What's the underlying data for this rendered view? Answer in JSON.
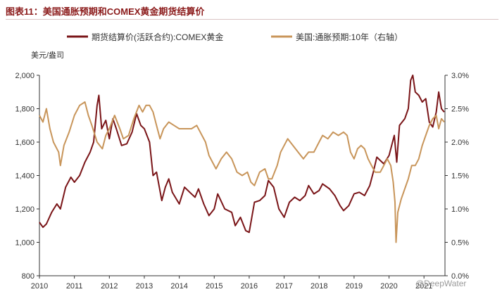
{
  "figure": {
    "title": "图表11：美国通胀预期和COMEX黄金期货结算价",
    "watermark": "@DeepWater"
  },
  "chart_data": {
    "type": "line",
    "y_left_unit": "美元/盎司",
    "y_left_range": [
      800,
      2000
    ],
    "y_left_ticks": [
      "800",
      "1,000",
      "1,200",
      "1,400",
      "1,600",
      "1,800",
      "2,000"
    ],
    "y_right_range": [
      0.0,
      3.0
    ],
    "y_right_ticks": [
      "0.0%",
      "0.5%",
      "1.0%",
      "1.5%",
      "2.0%",
      "2.5%",
      "3.0%"
    ],
    "x_range": [
      2010.0,
      2021.6
    ],
    "x_ticks": [
      "2010",
      "2011",
      "2012",
      "2013",
      "2014",
      "2015",
      "2016",
      "2017",
      "2018",
      "2019",
      "2020",
      "2021"
    ],
    "grid": false,
    "legend_position": "top",
    "series": [
      {
        "name": "期货结算价(活跃合约):COMEX黄金",
        "axis": "left",
        "color": "#7a1518",
        "points": [
          [
            2010.0,
            1120
          ],
          [
            2010.1,
            1090
          ],
          [
            2010.2,
            1110
          ],
          [
            2010.35,
            1180
          ],
          [
            2010.5,
            1230
          ],
          [
            2010.6,
            1200
          ],
          [
            2010.75,
            1330
          ],
          [
            2010.9,
            1390
          ],
          [
            2011.0,
            1360
          ],
          [
            2011.15,
            1400
          ],
          [
            2011.3,
            1480
          ],
          [
            2011.45,
            1540
          ],
          [
            2011.55,
            1600
          ],
          [
            2011.65,
            1820
          ],
          [
            2011.7,
            1880
          ],
          [
            2011.78,
            1680
          ],
          [
            2011.9,
            1730
          ],
          [
            2012.0,
            1620
          ],
          [
            2012.1,
            1740
          ],
          [
            2012.2,
            1680
          ],
          [
            2012.35,
            1580
          ],
          [
            2012.5,
            1590
          ],
          [
            2012.65,
            1660
          ],
          [
            2012.78,
            1770
          ],
          [
            2012.9,
            1700
          ],
          [
            2013.0,
            1680
          ],
          [
            2013.15,
            1600
          ],
          [
            2013.25,
            1400
          ],
          [
            2013.35,
            1420
          ],
          [
            2013.5,
            1250
          ],
          [
            2013.6,
            1330
          ],
          [
            2013.7,
            1380
          ],
          [
            2013.8,
            1300
          ],
          [
            2014.0,
            1230
          ],
          [
            2014.15,
            1330
          ],
          [
            2014.3,
            1300
          ],
          [
            2014.45,
            1270
          ],
          [
            2014.55,
            1320
          ],
          [
            2014.7,
            1230
          ],
          [
            2014.85,
            1160
          ],
          [
            2015.0,
            1200
          ],
          [
            2015.1,
            1290
          ],
          [
            2015.3,
            1200
          ],
          [
            2015.5,
            1180
          ],
          [
            2015.6,
            1100
          ],
          [
            2015.75,
            1150
          ],
          [
            2015.9,
            1070
          ],
          [
            2016.0,
            1060
          ],
          [
            2016.15,
            1240
          ],
          [
            2016.3,
            1250
          ],
          [
            2016.45,
            1280
          ],
          [
            2016.55,
            1370
          ],
          [
            2016.7,
            1330
          ],
          [
            2016.85,
            1200
          ],
          [
            2017.0,
            1150
          ],
          [
            2017.15,
            1240
          ],
          [
            2017.3,
            1270
          ],
          [
            2017.45,
            1250
          ],
          [
            2017.6,
            1280
          ],
          [
            2017.7,
            1340
          ],
          [
            2017.85,
            1290
          ],
          [
            2018.0,
            1310
          ],
          [
            2018.1,
            1350
          ],
          [
            2018.3,
            1320
          ],
          [
            2018.45,
            1280
          ],
          [
            2018.6,
            1220
          ],
          [
            2018.7,
            1190
          ],
          [
            2018.85,
            1220
          ],
          [
            2019.0,
            1290
          ],
          [
            2019.15,
            1300
          ],
          [
            2019.3,
            1280
          ],
          [
            2019.45,
            1340
          ],
          [
            2019.55,
            1420
          ],
          [
            2019.65,
            1510
          ],
          [
            2019.75,
            1490
          ],
          [
            2019.85,
            1470
          ],
          [
            2020.0,
            1520
          ],
          [
            2020.15,
            1640
          ],
          [
            2020.22,
            1480
          ],
          [
            2020.3,
            1700
          ],
          [
            2020.45,
            1740
          ],
          [
            2020.55,
            1800
          ],
          [
            2020.62,
            1970
          ],
          [
            2020.68,
            2000
          ],
          [
            2020.75,
            1900
          ],
          [
            2020.85,
            1880
          ],
          [
            2020.95,
            1840
          ],
          [
            2021.05,
            1860
          ],
          [
            2021.15,
            1720
          ],
          [
            2021.25,
            1690
          ],
          [
            2021.35,
            1780
          ],
          [
            2021.42,
            1900
          ],
          [
            2021.5,
            1800
          ],
          [
            2021.58,
            1780
          ]
        ]
      },
      {
        "name": "美国:通胀预期:10年（右轴）",
        "axis": "right",
        "color": "#c8955a",
        "points": [
          [
            2010.0,
            2.4
          ],
          [
            2010.1,
            2.3
          ],
          [
            2010.2,
            2.5
          ],
          [
            2010.3,
            2.2
          ],
          [
            2010.4,
            2.0
          ],
          [
            2010.55,
            1.85
          ],
          [
            2010.6,
            1.65
          ],
          [
            2010.7,
            1.95
          ],
          [
            2010.85,
            2.15
          ],
          [
            2011.0,
            2.4
          ],
          [
            2011.15,
            2.55
          ],
          [
            2011.3,
            2.6
          ],
          [
            2011.4,
            2.4
          ],
          [
            2011.5,
            2.25
          ],
          [
            2011.65,
            2.0
          ],
          [
            2011.8,
            1.9
          ],
          [
            2011.9,
            2.1
          ],
          [
            2012.0,
            2.2
          ],
          [
            2012.15,
            2.4
          ],
          [
            2012.3,
            2.2
          ],
          [
            2012.4,
            2.05
          ],
          [
            2012.55,
            2.1
          ],
          [
            2012.7,
            2.35
          ],
          [
            2012.85,
            2.55
          ],
          [
            2012.95,
            2.45
          ],
          [
            2013.05,
            2.55
          ],
          [
            2013.15,
            2.55
          ],
          [
            2013.25,
            2.45
          ],
          [
            2013.35,
            2.25
          ],
          [
            2013.45,
            2.05
          ],
          [
            2013.55,
            2.2
          ],
          [
            2013.7,
            2.3
          ],
          [
            2013.85,
            2.25
          ],
          [
            2014.0,
            2.2
          ],
          [
            2014.2,
            2.2
          ],
          [
            2014.35,
            2.2
          ],
          [
            2014.5,
            2.25
          ],
          [
            2014.6,
            2.15
          ],
          [
            2014.75,
            2.0
          ],
          [
            2014.85,
            1.8
          ],
          [
            2014.95,
            1.7
          ],
          [
            2015.05,
            1.6
          ],
          [
            2015.2,
            1.75
          ],
          [
            2015.35,
            1.85
          ],
          [
            2015.5,
            1.75
          ],
          [
            2015.65,
            1.55
          ],
          [
            2015.8,
            1.5
          ],
          [
            2015.95,
            1.55
          ],
          [
            2016.05,
            1.4
          ],
          [
            2016.15,
            1.35
          ],
          [
            2016.3,
            1.55
          ],
          [
            2016.45,
            1.6
          ],
          [
            2016.55,
            1.45
          ],
          [
            2016.65,
            1.45
          ],
          [
            2016.8,
            1.65
          ],
          [
            2016.9,
            1.85
          ],
          [
            2017.0,
            1.95
          ],
          [
            2017.1,
            2.05
          ],
          [
            2017.25,
            1.95
          ],
          [
            2017.4,
            1.85
          ],
          [
            2017.55,
            1.75
          ],
          [
            2017.7,
            1.85
          ],
          [
            2017.85,
            1.85
          ],
          [
            2018.0,
            2.0
          ],
          [
            2018.1,
            2.1
          ],
          [
            2018.25,
            2.05
          ],
          [
            2018.4,
            2.15
          ],
          [
            2018.55,
            2.1
          ],
          [
            2018.7,
            2.15
          ],
          [
            2018.8,
            2.1
          ],
          [
            2018.9,
            1.85
          ],
          [
            2019.0,
            1.75
          ],
          [
            2019.1,
            1.9
          ],
          [
            2019.2,
            1.95
          ],
          [
            2019.3,
            1.9
          ],
          [
            2019.4,
            1.75
          ],
          [
            2019.5,
            1.65
          ],
          [
            2019.6,
            1.55
          ],
          [
            2019.75,
            1.55
          ],
          [
            2019.85,
            1.65
          ],
          [
            2019.95,
            1.75
          ],
          [
            2020.05,
            1.65
          ],
          [
            2020.12,
            1.4
          ],
          [
            2020.17,
            1.1
          ],
          [
            2020.2,
            0.5
          ],
          [
            2020.25,
            0.95
          ],
          [
            2020.35,
            1.15
          ],
          [
            2020.45,
            1.3
          ],
          [
            2020.55,
            1.45
          ],
          [
            2020.65,
            1.65
          ],
          [
            2020.75,
            1.65
          ],
          [
            2020.85,
            1.75
          ],
          [
            2020.95,
            1.95
          ],
          [
            2021.05,
            2.1
          ],
          [
            2021.15,
            2.25
          ],
          [
            2021.25,
            2.35
          ],
          [
            2021.35,
            2.4
          ],
          [
            2021.42,
            2.2
          ],
          [
            2021.5,
            2.35
          ],
          [
            2021.58,
            2.3
          ]
        ]
      }
    ]
  }
}
